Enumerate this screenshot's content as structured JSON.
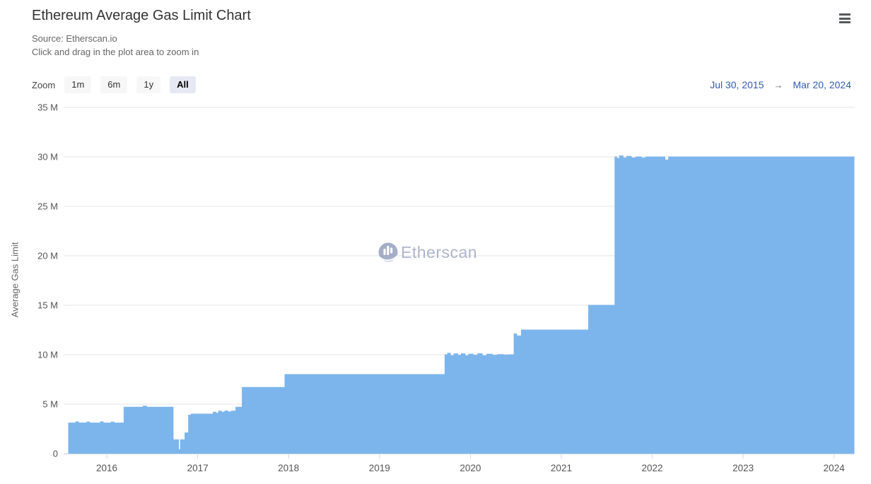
{
  "header": {
    "title": "Ethereum Average Gas Limit Chart",
    "subtitle_source": "Source: Etherscan.io",
    "subtitle_hint": "Click and drag in the plot area to zoom in"
  },
  "range_selector": {
    "zoom_label": "Zoom",
    "buttons": [
      {
        "label": "1m",
        "selected": false
      },
      {
        "label": "6m",
        "selected": false
      },
      {
        "label": "1y",
        "selected": false
      },
      {
        "label": "All",
        "selected": true
      }
    ],
    "from_date": "Jul 30, 2015",
    "to_date": "Mar 20, 2024",
    "arrow": "→"
  },
  "watermark": {
    "text": "Etherscan"
  },
  "colors": {
    "series": "#7cb5ec",
    "gridline": "#e6e6e6",
    "axis_line": "#ccd6eb",
    "axis_label": "#555555",
    "date_link": "#335cad",
    "watermark": "#9aa3bd",
    "selected_button_bg": "#e6e9f3"
  },
  "chart_data": {
    "type": "area",
    "title": "Ethereum Average Gas Limit Chart",
    "xlabel": "",
    "ylabel": "Average Gas Limit",
    "unit": "million gas",
    "xlim": [
      2015.58,
      2024.22
    ],
    "ylim": [
      0,
      35
    ],
    "grid": true,
    "legend": "none",
    "series_color": "#7cb5ec",
    "x_ticks": [
      {
        "v": 2016,
        "label": "2016"
      },
      {
        "v": 2017,
        "label": "2017"
      },
      {
        "v": 2018,
        "label": "2018"
      },
      {
        "v": 2019,
        "label": "2019"
      },
      {
        "v": 2020,
        "label": "2020"
      },
      {
        "v": 2021,
        "label": "2021"
      },
      {
        "v": 2022,
        "label": "2022"
      },
      {
        "v": 2023,
        "label": "2023"
      },
      {
        "v": 2024,
        "label": "2024"
      }
    ],
    "y_ticks": [
      {
        "v": 0,
        "label": "0"
      },
      {
        "v": 5,
        "label": "5 M"
      },
      {
        "v": 10,
        "label": "10 M"
      },
      {
        "v": 15,
        "label": "15 M"
      },
      {
        "v": 20,
        "label": "20 M"
      },
      {
        "v": 25,
        "label": "25 M"
      },
      {
        "v": 30,
        "label": "30 M"
      },
      {
        "v": 35,
        "label": "35 M"
      }
    ],
    "steps_comment": "Step-series: [decimal_year_start, avg_gas_limit_in_millions]; value holds until next point; final point is series end (Mar 20, 2024).",
    "steps": [
      [
        2015.58,
        3.1
      ],
      [
        2015.66,
        3.22
      ],
      [
        2015.69,
        3.1
      ],
      [
        2015.78,
        3.2
      ],
      [
        2015.81,
        3.1
      ],
      [
        2015.93,
        3.22
      ],
      [
        2015.96,
        3.1
      ],
      [
        2016.05,
        3.2
      ],
      [
        2016.08,
        3.1
      ],
      [
        2016.19,
        4.7
      ],
      [
        2016.4,
        4.8
      ],
      [
        2016.44,
        4.7
      ],
      [
        2016.73,
        1.4
      ],
      [
        2016.79,
        0.4
      ],
      [
        2016.81,
        1.4
      ],
      [
        2016.86,
        2.1
      ],
      [
        2016.9,
        3.9
      ],
      [
        2016.93,
        4.0
      ],
      [
        2017.17,
        4.2
      ],
      [
        2017.2,
        4.1
      ],
      [
        2017.23,
        4.3
      ],
      [
        2017.26,
        4.2
      ],
      [
        2017.3,
        4.32
      ],
      [
        2017.33,
        4.22
      ],
      [
        2017.37,
        4.3
      ],
      [
        2017.42,
        4.7
      ],
      [
        2017.49,
        6.7
      ],
      [
        2017.96,
        8.0
      ],
      [
        2019.72,
        10.0
      ],
      [
        2019.75,
        10.15
      ],
      [
        2019.78,
        9.9
      ],
      [
        2019.82,
        10.1
      ],
      [
        2019.86,
        9.95
      ],
      [
        2019.9,
        10.1
      ],
      [
        2019.94,
        9.9
      ],
      [
        2019.98,
        10.05
      ],
      [
        2020.03,
        9.95
      ],
      [
        2020.08,
        10.1
      ],
      [
        2020.13,
        9.9
      ],
      [
        2020.18,
        10.05
      ],
      [
        2020.24,
        9.95
      ],
      [
        2020.3,
        10.02
      ],
      [
        2020.36,
        9.97
      ],
      [
        2020.42,
        10.0
      ],
      [
        2020.48,
        12.1
      ],
      [
        2020.51,
        11.9
      ],
      [
        2020.56,
        12.5
      ],
      [
        2021.3,
        15.0
      ],
      [
        2021.59,
        30.0
      ],
      [
        2021.61,
        29.85
      ],
      [
        2021.64,
        30.1
      ],
      [
        2021.68,
        29.9
      ],
      [
        2021.72,
        30.05
      ],
      [
        2021.77,
        29.9
      ],
      [
        2021.82,
        30.0
      ],
      [
        2021.88,
        29.9
      ],
      [
        2021.93,
        30.0
      ],
      [
        2022.14,
        29.7
      ],
      [
        2022.18,
        30.0
      ],
      [
        2024.22,
        30.0
      ]
    ]
  }
}
